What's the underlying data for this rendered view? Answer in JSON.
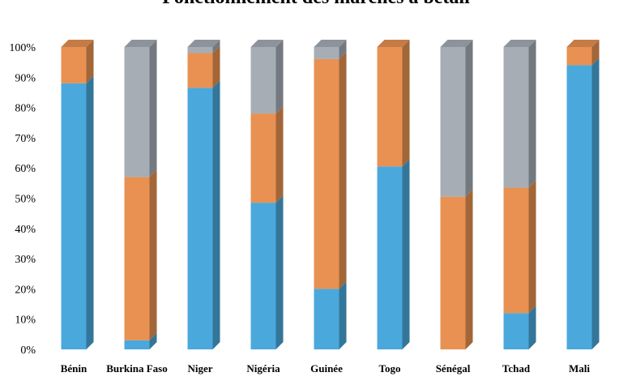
{
  "chart_data": {
    "type": "bar",
    "stacked": true,
    "style": "3d-column",
    "title": "Fonctionnement des marchés à bétail",
    "categories": [
      "Bénin",
      "Burkina Faso",
      "Niger",
      "Nigéria",
      "Guinée",
      "Togo",
      "Sénégal",
      "Tchad",
      "Mali"
    ],
    "series": [
      {
        "color": "#4AA8DC",
        "values": [
          88,
          3,
          86.5,
          48.5,
          20,
          60.5,
          0,
          12,
          94
        ]
      },
      {
        "color": "#E89152",
        "values": [
          12,
          54,
          11.5,
          29.5,
          76,
          39.5,
          50.5,
          41.5,
          6
        ]
      },
      {
        "color": "#A6ADB5",
        "values": [
          0,
          43,
          2,
          22,
          4,
          0,
          49.5,
          46.5,
          0
        ]
      }
    ],
    "ylim": [
      0,
      100
    ],
    "yticks": [
      "0%",
      "10%",
      "20%",
      "30%",
      "40%",
      "50%",
      "60%",
      "70%",
      "80%",
      "90%",
      "100%"
    ],
    "grid": false,
    "legend": "none"
  }
}
